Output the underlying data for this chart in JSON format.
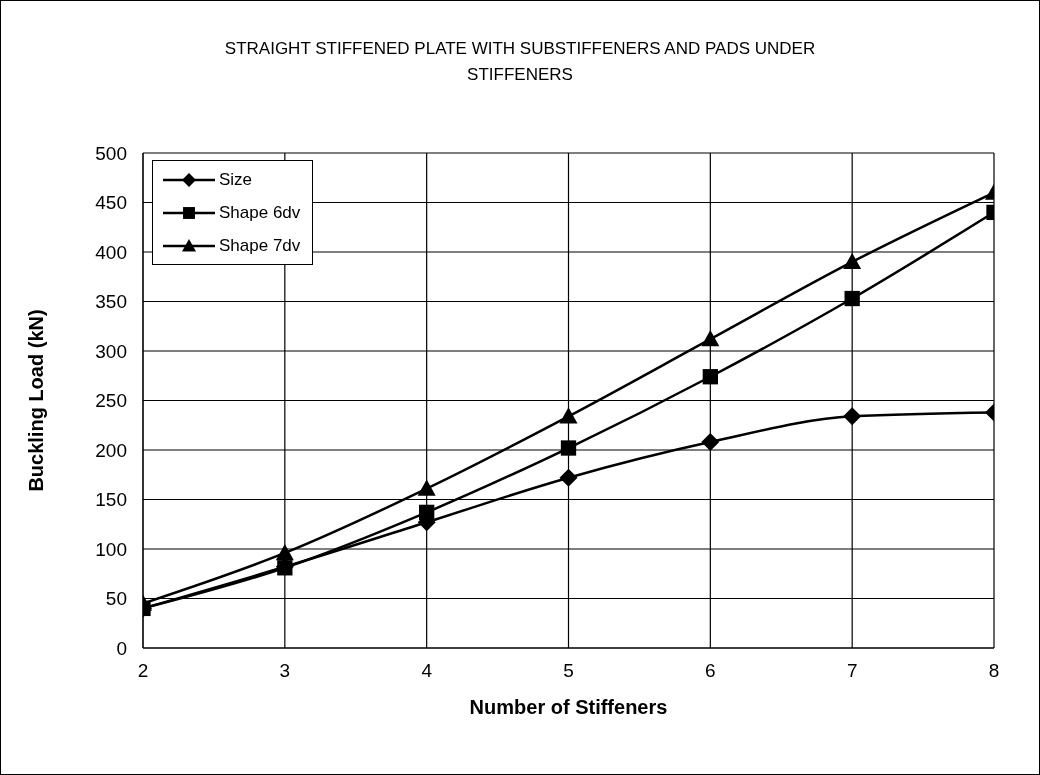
{
  "chart_data": {
    "type": "line",
    "title": "STRAIGHT STIFFENED PLATE WITH SUBSTIFFENERS AND PADS UNDER STIFFENERS",
    "xlabel": "Number of Stiffeners",
    "ylabel": "Buckling Load (kN)",
    "x": [
      2,
      3,
      4,
      5,
      6,
      7,
      8
    ],
    "series": [
      {
        "name": "Size",
        "color": "#000000",
        "marker": "diamond",
        "values": [
          40,
          82,
          127,
          172,
          208,
          234,
          238
        ]
      },
      {
        "name": "Shape 6dv",
        "color": "#000000",
        "marker": "square",
        "values": [
          40,
          81,
          137,
          202,
          274,
          353,
          440
        ]
      },
      {
        "name": "Shape 7dv",
        "color": "#000000",
        "marker": "triangle",
        "values": [
          45,
          96,
          161,
          234,
          312,
          390,
          460
        ]
      }
    ],
    "xlim": [
      2,
      8
    ],
    "xticks": [
      2,
      3,
      4,
      5,
      6,
      7,
      8
    ],
    "ylim": [
      0,
      500
    ],
    "yticks": [
      0,
      50,
      100,
      150,
      200,
      250,
      300,
      350,
      400,
      450,
      500
    ],
    "grid": true,
    "legend": "top left",
    "line_style": "solid"
  }
}
